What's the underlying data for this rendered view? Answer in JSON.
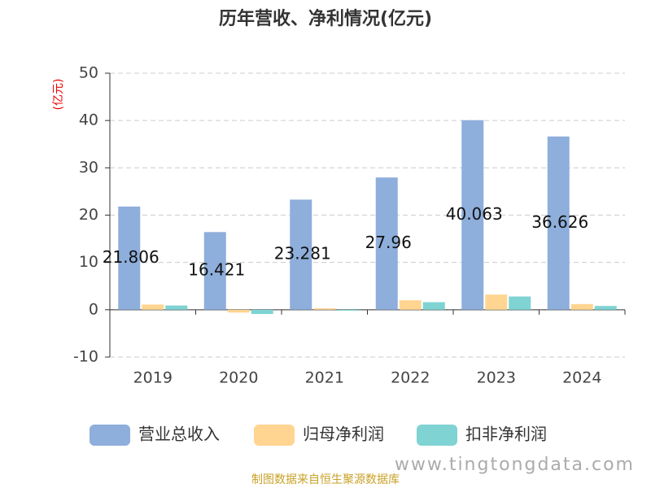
{
  "chart_data": {
    "type": "bar",
    "title": "历年营收、净利情况(亿元)",
    "y_label": "(亿元)",
    "categories": [
      "2019",
      "2020",
      "2021",
      "2022",
      "2023",
      "2024"
    ],
    "series": [
      {
        "name": "营业总收入",
        "color": "#8eaedb",
        "values": [
          21.806,
          16.421,
          23.281,
          27.96,
          40.063,
          36.626
        ]
      },
      {
        "name": "归母净利润",
        "color": "#ffd591",
        "values": [
          1.1,
          -0.6,
          0.3,
          2.0,
          3.2,
          1.2
        ]
      },
      {
        "name": "扣非净利润",
        "color": "#7fd3d3",
        "values": [
          0.9,
          -0.9,
          -0.2,
          1.6,
          2.8,
          0.8
        ]
      }
    ],
    "labeled_series": 0,
    "ylim": [
      -10,
      50
    ],
    "yticks": [
      -10,
      0,
      10,
      20,
      30,
      40,
      50
    ],
    "grid": true,
    "source": "制图数据来自恒生聚源数据库",
    "watermark": "www.tingtongdata.com"
  }
}
